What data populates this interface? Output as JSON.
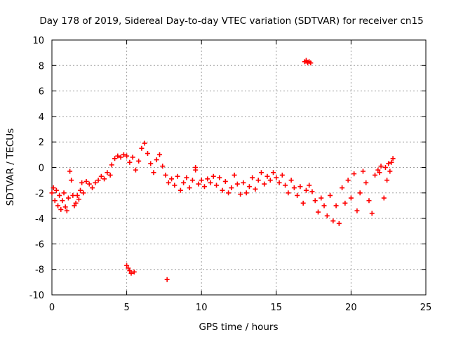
{
  "chart_data": {
    "type": "scatter",
    "title": "Day 178 of 2019, Sidereal Day-to-day VTEC variation (SDTVAR) for receiver cn15",
    "xlabel": "GPS time / hours",
    "ylabel": "SDTVAR / TECUs",
    "xlim": [
      0,
      25
    ],
    "ylim": [
      -10,
      10
    ],
    "xticks": [
      "0",
      "5",
      "10",
      "15",
      "20",
      "25"
    ],
    "yticks": [
      "-10",
      "-8",
      "-6",
      "-4",
      "-2",
      "0",
      "2",
      "4",
      "6",
      "8",
      "10"
    ],
    "grid": true,
    "marker": "plus",
    "color": "#ff0000",
    "series": [
      {
        "name": "cn15",
        "points": [
          [
            0.0,
            -2.0
          ],
          [
            0.1,
            -1.6
          ],
          [
            0.2,
            -2.6
          ],
          [
            0.3,
            -1.8
          ],
          [
            0.4,
            -3.0
          ],
          [
            0.5,
            -2.2
          ],
          [
            0.6,
            -3.3
          ],
          [
            0.7,
            -2.6
          ],
          [
            0.8,
            -2.0
          ],
          [
            0.9,
            -3.1
          ],
          [
            1.0,
            -3.4
          ],
          [
            1.1,
            -2.4
          ],
          [
            1.2,
            -0.3
          ],
          [
            1.3,
            -1.0
          ],
          [
            1.4,
            -2.2
          ],
          [
            1.5,
            -3.0
          ],
          [
            1.6,
            -2.8
          ],
          [
            1.7,
            -2.2
          ],
          [
            1.8,
            -2.5
          ],
          [
            1.9,
            -1.8
          ],
          [
            2.0,
            -1.2
          ],
          [
            2.1,
            -2.0
          ],
          [
            2.3,
            -1.1
          ],
          [
            2.5,
            -1.3
          ],
          [
            2.7,
            -1.6
          ],
          [
            2.9,
            -1.2
          ],
          [
            3.1,
            -1.0
          ],
          [
            3.3,
            -0.7
          ],
          [
            3.5,
            -0.9
          ],
          [
            3.7,
            -0.4
          ],
          [
            3.9,
            -0.6
          ],
          [
            4.0,
            0.2
          ],
          [
            4.2,
            0.7
          ],
          [
            4.4,
            0.9
          ],
          [
            4.6,
            0.8
          ],
          [
            4.8,
            1.0
          ],
          [
            5.0,
            0.9
          ],
          [
            5.2,
            0.4
          ],
          [
            5.4,
            0.8
          ],
          [
            5.6,
            -0.2
          ],
          [
            5.8,
            0.5
          ],
          [
            6.0,
            1.5
          ],
          [
            6.2,
            1.9
          ],
          [
            6.4,
            1.1
          ],
          [
            6.6,
            0.3
          ],
          [
            6.8,
            -0.4
          ],
          [
            7.0,
            0.6
          ],
          [
            7.2,
            1.0
          ],
          [
            7.4,
            0.1
          ],
          [
            7.6,
            -0.6
          ],
          [
            7.8,
            -1.2
          ],
          [
            8.0,
            -0.9
          ],
          [
            8.2,
            -1.4
          ],
          [
            8.4,
            -0.7
          ],
          [
            8.6,
            -1.8
          ],
          [
            8.8,
            -1.2
          ],
          [
            9.0,
            -0.8
          ],
          [
            9.2,
            -1.6
          ],
          [
            9.4,
            -1.0
          ],
          [
            9.6,
            -0.2
          ],
          [
            9.8,
            -1.3
          ],
          [
            10.0,
            -1.0
          ],
          [
            10.2,
            -1.5
          ],
          [
            10.4,
            -0.9
          ],
          [
            10.6,
            -1.2
          ],
          [
            10.8,
            -0.7
          ],
          [
            11.0,
            -1.4
          ],
          [
            11.2,
            -0.8
          ],
          [
            11.4,
            -1.8
          ],
          [
            11.6,
            -1.1
          ],
          [
            11.8,
            -2.0
          ],
          [
            12.0,
            -1.6
          ],
          [
            12.2,
            -0.6
          ],
          [
            12.4,
            -1.3
          ],
          [
            12.6,
            -2.1
          ],
          [
            12.8,
            -1.2
          ],
          [
            13.0,
            -2.0
          ],
          [
            13.2,
            -1.5
          ],
          [
            13.4,
            -0.8
          ],
          [
            13.6,
            -1.7
          ],
          [
            13.8,
            -1.0
          ],
          [
            14.0,
            -0.4
          ],
          [
            14.2,
            -1.3
          ],
          [
            14.4,
            -0.7
          ],
          [
            14.6,
            -1.0
          ],
          [
            14.8,
            -0.4
          ],
          [
            15.0,
            -0.8
          ],
          [
            15.2,
            -1.2
          ],
          [
            15.4,
            -0.6
          ],
          [
            15.6,
            -1.4
          ],
          [
            15.8,
            -2.0
          ],
          [
            16.0,
            -1.0
          ],
          [
            16.2,
            -1.6
          ],
          [
            16.4,
            -2.2
          ],
          [
            16.6,
            -1.5
          ],
          [
            16.8,
            -2.8
          ],
          [
            17.0,
            -1.8
          ],
          [
            17.2,
            -1.4
          ],
          [
            17.4,
            -1.9
          ],
          [
            17.6,
            -2.6
          ],
          [
            17.8,
            -3.5
          ],
          [
            18.0,
            -2.4
          ],
          [
            18.2,
            -3.0
          ],
          [
            18.4,
            -3.8
          ],
          [
            18.6,
            -2.2
          ],
          [
            18.8,
            -4.2
          ],
          [
            19.0,
            -3.0
          ],
          [
            19.2,
            -4.4
          ],
          [
            19.4,
            -1.6
          ],
          [
            19.6,
            -2.8
          ],
          [
            19.8,
            -1.0
          ],
          [
            20.0,
            -2.4
          ],
          [
            20.2,
            -0.5
          ],
          [
            20.4,
            -3.4
          ],
          [
            20.6,
            -2.0
          ],
          [
            20.8,
            -0.3
          ],
          [
            21.0,
            -1.2
          ],
          [
            21.2,
            -2.6
          ],
          [
            21.4,
            -3.6
          ],
          [
            21.6,
            -0.6
          ],
          [
            21.8,
            -0.2
          ],
          [
            22.0,
            0.1
          ],
          [
            22.2,
            -2.4
          ],
          [
            22.4,
            -1.0
          ],
          [
            22.6,
            -0.3
          ],
          [
            22.8,
            0.7
          ],
          [
            22.7,
            0.4
          ],
          [
            22.5,
            0.3
          ],
          [
            22.3,
            0.0
          ],
          [
            21.9,
            -0.4
          ],
          [
            16.9,
            8.3
          ],
          [
            17.0,
            8.4
          ],
          [
            17.1,
            8.2
          ],
          [
            17.2,
            8.3
          ],
          [
            17.3,
            8.2
          ],
          [
            5.0,
            -7.7
          ],
          [
            5.1,
            -7.9
          ],
          [
            5.2,
            -8.1
          ],
          [
            5.3,
            -8.3
          ],
          [
            5.5,
            -8.2
          ],
          [
            7.7,
            -8.8
          ],
          [
            9.6,
            0.0
          ]
        ]
      }
    ]
  }
}
